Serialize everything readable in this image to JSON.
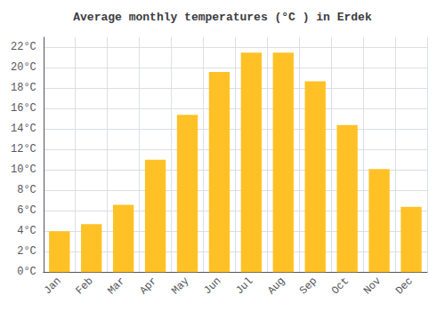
{
  "chart_data": {
    "type": "bar",
    "title": "Average monthly temperatures (°C ) in Erdek",
    "categories": [
      "Jan",
      "Feb",
      "Mar",
      "Apr",
      "May",
      "Jun",
      "Jul",
      "Aug",
      "Sep",
      "Oct",
      "Nov",
      "Dec"
    ],
    "values": [
      4.0,
      4.7,
      6.6,
      11.0,
      15.4,
      19.6,
      21.5,
      21.5,
      18.7,
      14.4,
      10.1,
      6.4
    ],
    "color": "#FFC125",
    "ylim": [
      0,
      23
    ],
    "yticks": [
      {
        "value": 0,
        "label": "0°C"
      },
      {
        "value": 2,
        "label": "2°C"
      },
      {
        "value": 4,
        "label": "4°C"
      },
      {
        "value": 6,
        "label": "6°C"
      },
      {
        "value": 8,
        "label": "8°C"
      },
      {
        "value": 10,
        "label": "10°C"
      },
      {
        "value": 12,
        "label": "12°C"
      },
      {
        "value": 14,
        "label": "14°C"
      },
      {
        "value": 16,
        "label": "16°C"
      },
      {
        "value": 18,
        "label": "18°C"
      },
      {
        "value": 20,
        "label": "20°C"
      },
      {
        "value": 22,
        "label": "22°C"
      }
    ],
    "grid": true
  }
}
